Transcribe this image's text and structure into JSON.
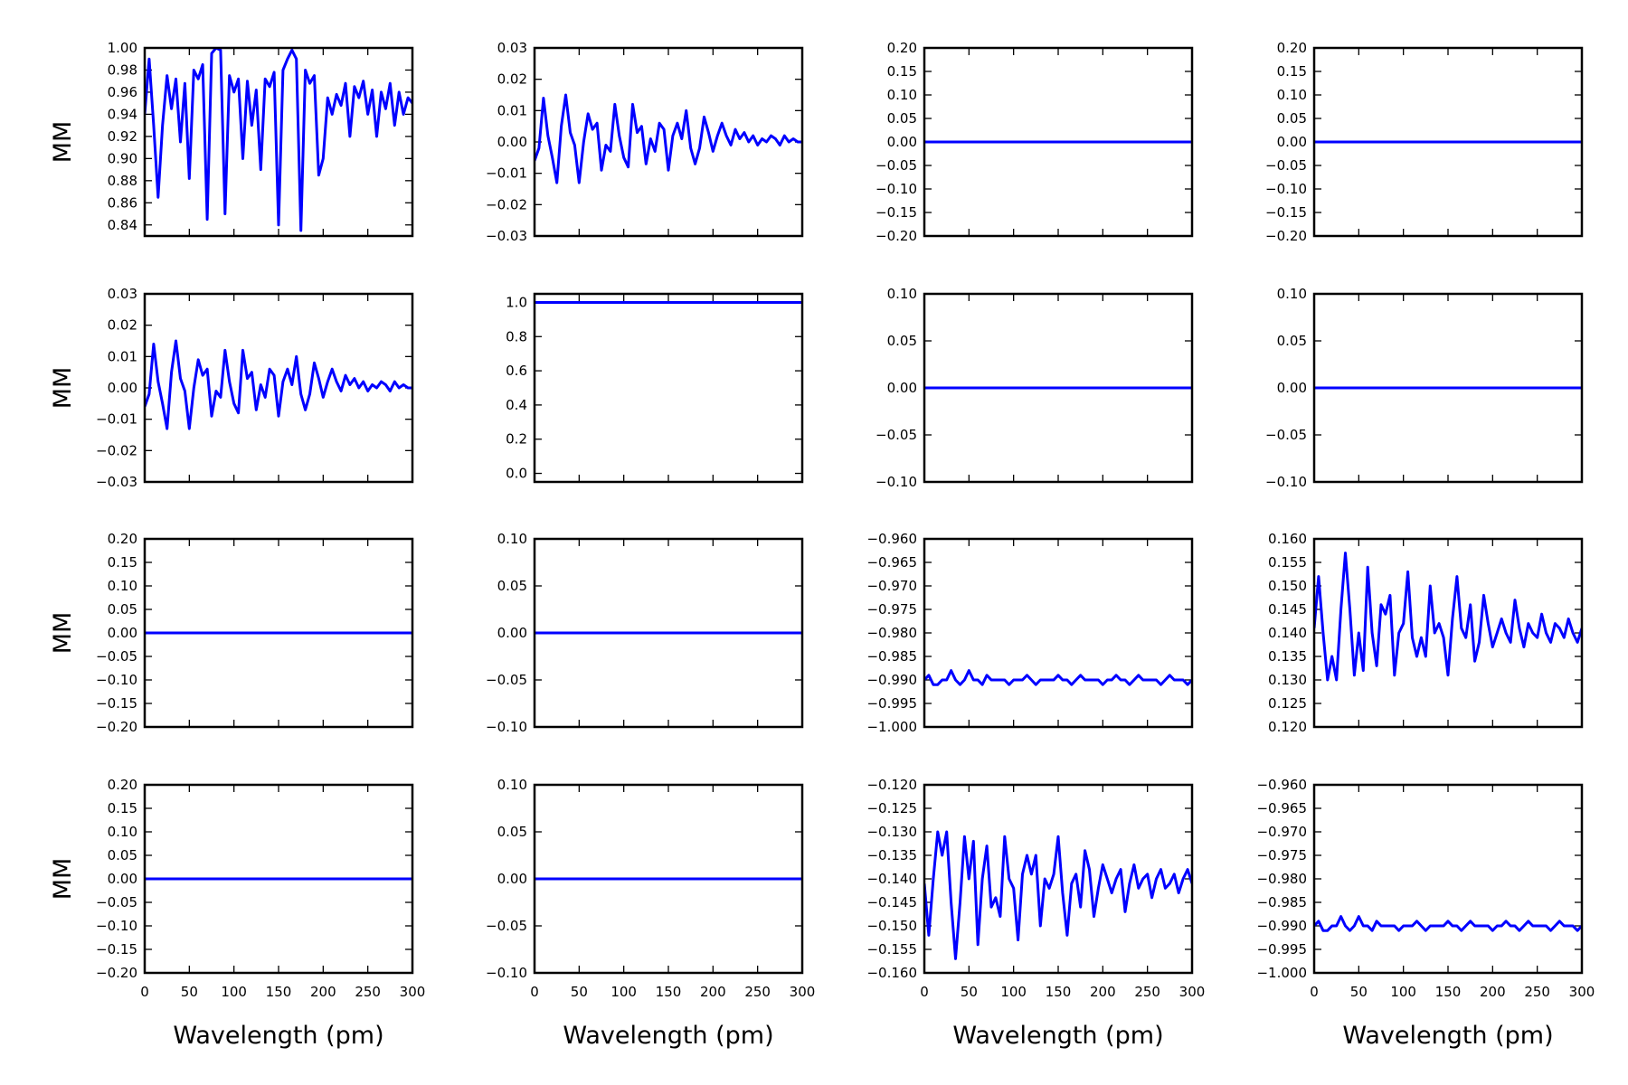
{
  "figure": {
    "ylabel": "MM",
    "xlabel": "Wavelength (pm)",
    "line_color": "#0000ff"
  },
  "chart_data": [
    {
      "type": "line",
      "row": 0,
      "col": 0,
      "xlim": [
        0,
        300
      ],
      "ylim": [
        0.83,
        1.0
      ],
      "yticks": [
        "0.84",
        "0.86",
        "0.88",
        "0.90",
        "0.92",
        "0.94",
        "0.96",
        "0.98",
        "1.00"
      ],
      "x": [
        0,
        5,
        10,
        15,
        20,
        25,
        30,
        35,
        40,
        45,
        50,
        55,
        60,
        65,
        70,
        75,
        80,
        85,
        90,
        95,
        100,
        105,
        110,
        115,
        120,
        125,
        130,
        135,
        140,
        145,
        150,
        155,
        160,
        165,
        170,
        175,
        180,
        185,
        190,
        195,
        200,
        205,
        210,
        215,
        220,
        225,
        230,
        235,
        240,
        245,
        250,
        255,
        260,
        265,
        270,
        275,
        280,
        285,
        290,
        295,
        300
      ],
      "y": [
        0.94,
        0.99,
        0.93,
        0.865,
        0.93,
        0.975,
        0.945,
        0.972,
        0.915,
        0.968,
        0.882,
        0.98,
        0.972,
        0.985,
        0.845,
        0.995,
        1.0,
        0.998,
        0.85,
        0.975,
        0.96,
        0.972,
        0.9,
        0.97,
        0.93,
        0.962,
        0.89,
        0.972,
        0.965,
        0.978,
        0.84,
        0.98,
        0.99,
        0.998,
        0.99,
        0.835,
        0.98,
        0.968,
        0.975,
        0.885,
        0.9,
        0.955,
        0.94,
        0.958,
        0.948,
        0.968,
        0.92,
        0.965,
        0.955,
        0.97,
        0.94,
        0.962,
        0.92,
        0.96,
        0.945,
        0.968,
        0.93,
        0.96,
        0.94,
        0.955,
        0.95
      ]
    },
    {
      "type": "line",
      "row": 0,
      "col": 1,
      "xlim": [
        0,
        300
      ],
      "ylim": [
        -0.03,
        0.03
      ],
      "yticks": [
        "−0.03",
        "−0.02",
        "−0.01",
        "0.00",
        "0.01",
        "0.02",
        "0.03"
      ],
      "x": [
        0,
        5,
        10,
        15,
        20,
        25,
        30,
        35,
        40,
        45,
        50,
        55,
        60,
        65,
        70,
        75,
        80,
        85,
        90,
        95,
        100,
        105,
        110,
        115,
        120,
        125,
        130,
        135,
        140,
        145,
        150,
        155,
        160,
        165,
        170,
        175,
        180,
        185,
        190,
        195,
        200,
        205,
        210,
        215,
        220,
        225,
        230,
        235,
        240,
        245,
        250,
        255,
        260,
        265,
        270,
        275,
        280,
        285,
        290,
        295,
        300
      ],
      "y": [
        -0.006,
        -0.002,
        0.014,
        0.002,
        -0.005,
        -0.013,
        0.005,
        0.015,
        0.003,
        -0.001,
        -0.013,
        0.0,
        0.009,
        0.004,
        0.006,
        -0.009,
        -0.001,
        -0.003,
        0.012,
        0.002,
        -0.005,
        -0.008,
        0.012,
        0.003,
        0.005,
        -0.007,
        0.001,
        -0.003,
        0.006,
        0.004,
        -0.009,
        0.002,
        0.006,
        0.001,
        0.01,
        -0.002,
        -0.007,
        -0.002,
        0.008,
        0.003,
        -0.003,
        0.002,
        0.006,
        0.002,
        -0.001,
        0.004,
        0.001,
        0.003,
        0.0,
        0.002,
        -0.001,
        0.001,
        0.0,
        0.002,
        0.001,
        -0.001,
        0.002,
        0.0,
        0.001,
        0.0,
        0.0
      ]
    },
    {
      "type": "line",
      "row": 0,
      "col": 2,
      "xlim": [
        0,
        300
      ],
      "ylim": [
        -0.2,
        0.2
      ],
      "yticks": [
        "−0.20",
        "−0.15",
        "−0.10",
        "−0.05",
        "0.00",
        "0.05",
        "0.10",
        "0.15",
        "0.20"
      ],
      "x": [
        0,
        300
      ],
      "y": [
        0,
        0
      ]
    },
    {
      "type": "line",
      "row": 0,
      "col": 3,
      "xlim": [
        0,
        300
      ],
      "ylim": [
        -0.2,
        0.2
      ],
      "yticks": [
        "−0.20",
        "−0.15",
        "−0.10",
        "−0.05",
        "0.00",
        "0.05",
        "0.10",
        "0.15",
        "0.20"
      ],
      "x": [
        0,
        300
      ],
      "y": [
        0,
        0
      ]
    },
    {
      "type": "line",
      "row": 1,
      "col": 0,
      "xlim": [
        0,
        300
      ],
      "ylim": [
        -0.03,
        0.03
      ],
      "yticks": [
        "−0.03",
        "−0.02",
        "−0.01",
        "0.00",
        "0.01",
        "0.02",
        "0.03"
      ],
      "x": [
        0,
        5,
        10,
        15,
        20,
        25,
        30,
        35,
        40,
        45,
        50,
        55,
        60,
        65,
        70,
        75,
        80,
        85,
        90,
        95,
        100,
        105,
        110,
        115,
        120,
        125,
        130,
        135,
        140,
        145,
        150,
        155,
        160,
        165,
        170,
        175,
        180,
        185,
        190,
        195,
        200,
        205,
        210,
        215,
        220,
        225,
        230,
        235,
        240,
        245,
        250,
        255,
        260,
        265,
        270,
        275,
        280,
        285,
        290,
        295,
        300
      ],
      "y": [
        -0.006,
        -0.002,
        0.014,
        0.002,
        -0.005,
        -0.013,
        0.005,
        0.015,
        0.003,
        -0.001,
        -0.013,
        0.0,
        0.009,
        0.004,
        0.006,
        -0.009,
        -0.001,
        -0.003,
        0.012,
        0.002,
        -0.005,
        -0.008,
        0.012,
        0.003,
        0.005,
        -0.007,
        0.001,
        -0.003,
        0.006,
        0.004,
        -0.009,
        0.002,
        0.006,
        0.001,
        0.01,
        -0.002,
        -0.007,
        -0.002,
        0.008,
        0.003,
        -0.003,
        0.002,
        0.006,
        0.002,
        -0.001,
        0.004,
        0.001,
        0.003,
        0.0,
        0.002,
        -0.001,
        0.001,
        0.0,
        0.002,
        0.001,
        -0.001,
        0.002,
        0.0,
        0.001,
        0.0,
        0.0
      ]
    },
    {
      "type": "line",
      "row": 1,
      "col": 1,
      "xlim": [
        0,
        300
      ],
      "ylim": [
        -0.05,
        1.05
      ],
      "yticks": [
        "0.0",
        "0.2",
        "0.4",
        "0.6",
        "0.8",
        "1.0"
      ],
      "x": [
        0,
        300
      ],
      "y": [
        1.0,
        1.0
      ]
    },
    {
      "type": "line",
      "row": 1,
      "col": 2,
      "xlim": [
        0,
        300
      ],
      "ylim": [
        -0.1,
        0.1
      ],
      "yticks": [
        "−0.10",
        "−0.05",
        "0.00",
        "0.05",
        "0.10"
      ],
      "x": [
        0,
        300
      ],
      "y": [
        0,
        0
      ]
    },
    {
      "type": "line",
      "row": 1,
      "col": 3,
      "xlim": [
        0,
        300
      ],
      "ylim": [
        -0.1,
        0.1
      ],
      "yticks": [
        "−0.10",
        "−0.05",
        "0.00",
        "0.05",
        "0.10"
      ],
      "x": [
        0,
        300
      ],
      "y": [
        0,
        0
      ]
    },
    {
      "type": "line",
      "row": 2,
      "col": 0,
      "xlim": [
        0,
        300
      ],
      "ylim": [
        -0.2,
        0.2
      ],
      "yticks": [
        "−0.20",
        "−0.15",
        "−0.10",
        "−0.05",
        "0.00",
        "0.05",
        "0.10",
        "0.15",
        "0.20"
      ],
      "x": [
        0,
        300
      ],
      "y": [
        0,
        0
      ]
    },
    {
      "type": "line",
      "row": 2,
      "col": 1,
      "xlim": [
        0,
        300
      ],
      "ylim": [
        -0.1,
        0.1
      ],
      "yticks": [
        "−0.10",
        "−0.05",
        "0.00",
        "0.05",
        "0.10"
      ],
      "x": [
        0,
        300
      ],
      "y": [
        0,
        0
      ]
    },
    {
      "type": "line",
      "row": 2,
      "col": 2,
      "xlim": [
        0,
        300
      ],
      "ylim": [
        -1.0,
        -0.96
      ],
      "yticks": [
        "−1.000",
        "−0.995",
        "−0.990",
        "−0.985",
        "−0.980",
        "−0.975",
        "−0.970",
        "−0.965",
        "−0.960"
      ],
      "x": [
        0,
        5,
        10,
        15,
        20,
        25,
        30,
        35,
        40,
        45,
        50,
        55,
        60,
        65,
        70,
        75,
        80,
        85,
        90,
        95,
        100,
        105,
        110,
        115,
        120,
        125,
        130,
        135,
        140,
        145,
        150,
        155,
        160,
        165,
        170,
        175,
        180,
        185,
        190,
        195,
        200,
        205,
        210,
        215,
        220,
        225,
        230,
        235,
        240,
        245,
        250,
        255,
        260,
        265,
        270,
        275,
        280,
        285,
        290,
        295,
        300
      ],
      "y": [
        -0.99,
        -0.989,
        -0.991,
        -0.991,
        -0.99,
        -0.99,
        -0.988,
        -0.99,
        -0.991,
        -0.99,
        -0.988,
        -0.99,
        -0.99,
        -0.991,
        -0.989,
        -0.99,
        -0.99,
        -0.99,
        -0.99,
        -0.991,
        -0.99,
        -0.99,
        -0.99,
        -0.989,
        -0.99,
        -0.991,
        -0.99,
        -0.99,
        -0.99,
        -0.99,
        -0.989,
        -0.99,
        -0.99,
        -0.991,
        -0.99,
        -0.989,
        -0.99,
        -0.99,
        -0.99,
        -0.99,
        -0.991,
        -0.99,
        -0.99,
        -0.989,
        -0.99,
        -0.99,
        -0.991,
        -0.99,
        -0.989,
        -0.99,
        -0.99,
        -0.99,
        -0.99,
        -0.991,
        -0.99,
        -0.989,
        -0.99,
        -0.99,
        -0.99,
        -0.991,
        -0.99
      ]
    },
    {
      "type": "line",
      "row": 2,
      "col": 3,
      "xlim": [
        0,
        300
      ],
      "ylim": [
        0.12,
        0.16
      ],
      "yticks": [
        "0.120",
        "0.125",
        "0.130",
        "0.135",
        "0.140",
        "0.145",
        "0.150",
        "0.155",
        "0.160"
      ],
      "x": [
        0,
        5,
        10,
        15,
        20,
        25,
        30,
        35,
        40,
        45,
        50,
        55,
        60,
        65,
        70,
        75,
        80,
        85,
        90,
        95,
        100,
        105,
        110,
        115,
        120,
        125,
        130,
        135,
        140,
        145,
        150,
        155,
        160,
        165,
        170,
        175,
        180,
        185,
        190,
        195,
        200,
        205,
        210,
        215,
        220,
        225,
        230,
        235,
        240,
        245,
        250,
        255,
        260,
        265,
        270,
        275,
        280,
        285,
        290,
        295,
        300
      ],
      "y": [
        0.141,
        0.152,
        0.14,
        0.13,
        0.135,
        0.13,
        0.145,
        0.157,
        0.145,
        0.131,
        0.14,
        0.132,
        0.154,
        0.14,
        0.133,
        0.146,
        0.144,
        0.148,
        0.131,
        0.14,
        0.142,
        0.153,
        0.139,
        0.135,
        0.139,
        0.135,
        0.15,
        0.14,
        0.142,
        0.139,
        0.131,
        0.143,
        0.152,
        0.141,
        0.139,
        0.146,
        0.134,
        0.138,
        0.148,
        0.142,
        0.137,
        0.14,
        0.143,
        0.14,
        0.138,
        0.147,
        0.141,
        0.137,
        0.142,
        0.14,
        0.139,
        0.144,
        0.14,
        0.138,
        0.142,
        0.141,
        0.139,
        0.143,
        0.14,
        0.138,
        0.141
      ]
    },
    {
      "type": "line",
      "row": 3,
      "col": 0,
      "xlim": [
        0,
        300
      ],
      "ylim": [
        -0.2,
        0.2
      ],
      "yticks": [
        "−0.20",
        "−0.15",
        "−0.10",
        "−0.05",
        "0.00",
        "0.05",
        "0.10",
        "0.15",
        "0.20"
      ],
      "xticks": [
        "0",
        "50",
        "100",
        "150",
        "200",
        "250",
        "300"
      ],
      "x": [
        0,
        300
      ],
      "y": [
        0,
        0
      ]
    },
    {
      "type": "line",
      "row": 3,
      "col": 1,
      "xlim": [
        0,
        300
      ],
      "ylim": [
        -0.1,
        0.1
      ],
      "yticks": [
        "−0.10",
        "−0.05",
        "0.00",
        "0.05",
        "0.10"
      ],
      "xticks": [
        "0",
        "50",
        "100",
        "150",
        "200",
        "250",
        "300"
      ],
      "x": [
        0,
        300
      ],
      "y": [
        0,
        0
      ]
    },
    {
      "type": "line",
      "row": 3,
      "col": 2,
      "xlim": [
        0,
        300
      ],
      "ylim": [
        -0.16,
        -0.12
      ],
      "yticks": [
        "−0.160",
        "−0.155",
        "−0.150",
        "−0.145",
        "−0.140",
        "−0.135",
        "−0.130",
        "−0.125",
        "−0.120"
      ],
      "xticks": [
        "0",
        "50",
        "100",
        "150",
        "200",
        "250",
        "300"
      ],
      "x": [
        0,
        5,
        10,
        15,
        20,
        25,
        30,
        35,
        40,
        45,
        50,
        55,
        60,
        65,
        70,
        75,
        80,
        85,
        90,
        95,
        100,
        105,
        110,
        115,
        120,
        125,
        130,
        135,
        140,
        145,
        150,
        155,
        160,
        165,
        170,
        175,
        180,
        185,
        190,
        195,
        200,
        205,
        210,
        215,
        220,
        225,
        230,
        235,
        240,
        245,
        250,
        255,
        260,
        265,
        270,
        275,
        280,
        285,
        290,
        295,
        300
      ],
      "y": [
        -0.141,
        -0.152,
        -0.14,
        -0.13,
        -0.135,
        -0.13,
        -0.145,
        -0.157,
        -0.145,
        -0.131,
        -0.14,
        -0.132,
        -0.154,
        -0.14,
        -0.133,
        -0.146,
        -0.144,
        -0.148,
        -0.131,
        -0.14,
        -0.142,
        -0.153,
        -0.139,
        -0.135,
        -0.139,
        -0.135,
        -0.15,
        -0.14,
        -0.142,
        -0.139,
        -0.131,
        -0.143,
        -0.152,
        -0.141,
        -0.139,
        -0.146,
        -0.134,
        -0.138,
        -0.148,
        -0.142,
        -0.137,
        -0.14,
        -0.143,
        -0.14,
        -0.138,
        -0.147,
        -0.141,
        -0.137,
        -0.142,
        -0.14,
        -0.139,
        -0.144,
        -0.14,
        -0.138,
        -0.142,
        -0.141,
        -0.139,
        -0.143,
        -0.14,
        -0.138,
        -0.141
      ]
    },
    {
      "type": "line",
      "row": 3,
      "col": 3,
      "xlim": [
        0,
        300
      ],
      "ylim": [
        -1.0,
        -0.96
      ],
      "yticks": [
        "−1.000",
        "−0.995",
        "−0.990",
        "−0.985",
        "−0.980",
        "−0.975",
        "−0.970",
        "−0.965",
        "−0.960"
      ],
      "xticks": [
        "0",
        "50",
        "100",
        "150",
        "200",
        "250",
        "300"
      ],
      "x": [
        0,
        5,
        10,
        15,
        20,
        25,
        30,
        35,
        40,
        45,
        50,
        55,
        60,
        65,
        70,
        75,
        80,
        85,
        90,
        95,
        100,
        105,
        110,
        115,
        120,
        125,
        130,
        135,
        140,
        145,
        150,
        155,
        160,
        165,
        170,
        175,
        180,
        185,
        190,
        195,
        200,
        205,
        210,
        215,
        220,
        225,
        230,
        235,
        240,
        245,
        250,
        255,
        260,
        265,
        270,
        275,
        280,
        285,
        290,
        295,
        300
      ],
      "y": [
        -0.99,
        -0.989,
        -0.991,
        -0.991,
        -0.99,
        -0.99,
        -0.988,
        -0.99,
        -0.991,
        -0.99,
        -0.988,
        -0.99,
        -0.99,
        -0.991,
        -0.989,
        -0.99,
        -0.99,
        -0.99,
        -0.99,
        -0.991,
        -0.99,
        -0.99,
        -0.99,
        -0.989,
        -0.99,
        -0.991,
        -0.99,
        -0.99,
        -0.99,
        -0.99,
        -0.989,
        -0.99,
        -0.99,
        -0.991,
        -0.99,
        -0.989,
        -0.99,
        -0.99,
        -0.99,
        -0.99,
        -0.991,
        -0.99,
        -0.99,
        -0.989,
        -0.99,
        -0.99,
        -0.991,
        -0.99,
        -0.989,
        -0.99,
        -0.99,
        -0.99,
        -0.99,
        -0.991,
        -0.99,
        -0.989,
        -0.99,
        -0.99,
        -0.99,
        -0.991,
        -0.99
      ]
    }
  ]
}
